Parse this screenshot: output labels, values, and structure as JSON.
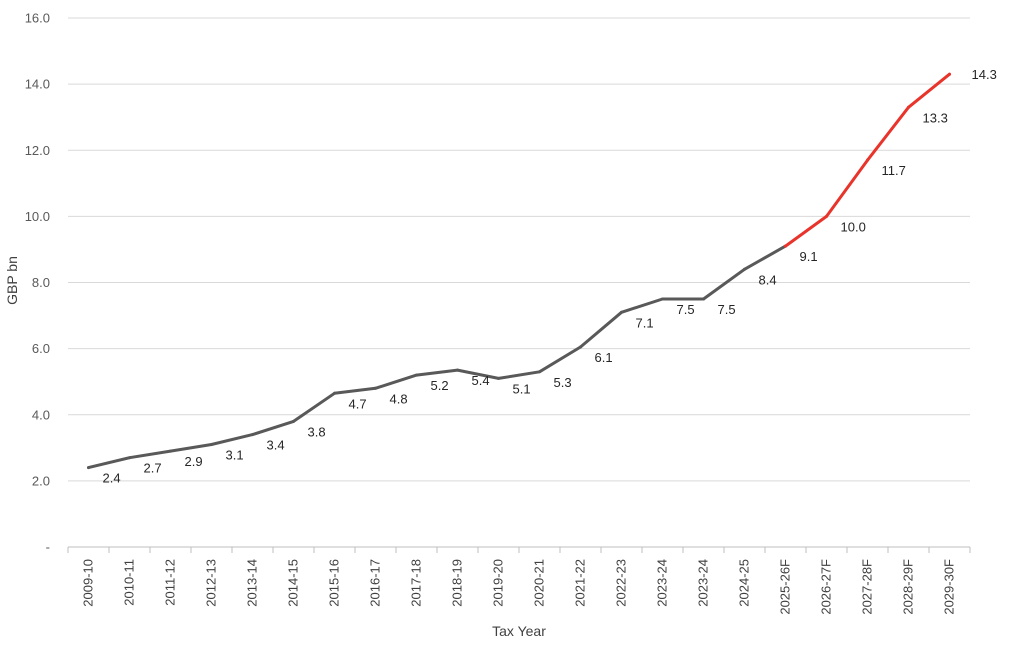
{
  "chart_data": {
    "type": "line",
    "xlabel": "Tax Year",
    "ylabel": "GBP bn",
    "ylim": [
      0,
      16
    ],
    "y_ticks": [
      "-",
      "2.0",
      "4.0",
      "6.0",
      "8.0",
      "10.0",
      "12.0",
      "14.0",
      "16.0"
    ],
    "grid": true,
    "categories": [
      "2009-10",
      "2010-11",
      "2011-12",
      "2012-13",
      "2013-14",
      "2014-15",
      "2015-16",
      "2016-17",
      "2017-18",
      "2018-19",
      "2019-20",
      "2020-21",
      "2021-22",
      "2022-23",
      "2023-24",
      "2023-24",
      "2024-25",
      "2025-26F",
      "2026-27F",
      "2027-28F",
      "2028-29F",
      "2029-30F"
    ],
    "values": [
      2.4,
      2.7,
      2.9,
      3.1,
      3.4,
      3.8,
      4.65,
      4.8,
      5.2,
      5.35,
      5.1,
      5.3,
      6.05,
      7.1,
      7.5,
      7.5,
      8.4,
      9.1,
      10.0,
      11.7,
      13.3,
      14.3
    ],
    "data_labels": [
      "2.4",
      "2.7",
      "2.9",
      "3.1",
      "3.4",
      "3.8",
      "4.7",
      "4.8",
      "5.2",
      "5.4",
      "5.1",
      "5.3",
      "6.1",
      "7.1",
      "7.5",
      "7.5",
      "8.4",
      "9.1",
      "10.0",
      "11.7",
      "13.3",
      "14.3"
    ],
    "forecast_start_index": 17,
    "colors": {
      "actual": "#595959",
      "forecast": "#e8342b",
      "grid": "#d9d9d9",
      "axis_text": "#595959"
    }
  }
}
